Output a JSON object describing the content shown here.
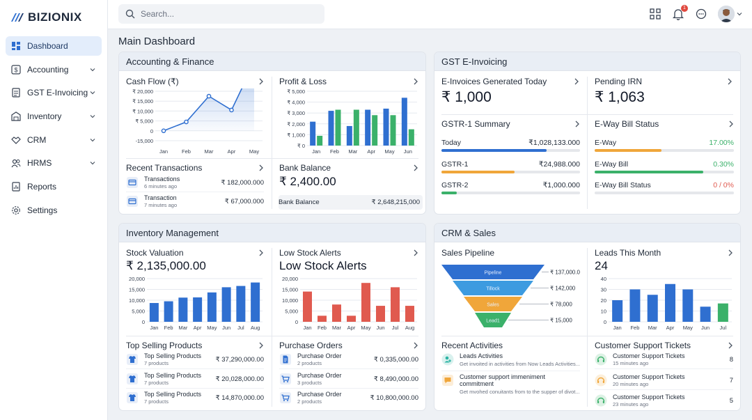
{
  "brand": {
    "name": "BIZIONIX"
  },
  "search": {
    "placeholder": "Search..."
  },
  "topbar": {
    "notification_count": "1",
    "icons": [
      "apps-grid-icon",
      "bell-icon",
      "chat-icon",
      "avatar"
    ]
  },
  "sidebar": {
    "items": [
      {
        "label": "Dashboard",
        "icon": "dashboard-icon",
        "active": true,
        "expandable": false
      },
      {
        "label": "Accounting",
        "icon": "dollar-icon",
        "active": false,
        "expandable": true
      },
      {
        "label": "GST E-Invoicing",
        "icon": "invoice-icon",
        "active": false,
        "expandable": true
      },
      {
        "label": "Inventory",
        "icon": "warehouse-icon",
        "active": false,
        "expandable": true
      },
      {
        "label": "CRM",
        "icon": "handshake-icon",
        "active": false,
        "expandable": true
      },
      {
        "label": "HRMS",
        "icon": "users-icon",
        "active": false,
        "expandable": true
      },
      {
        "label": "Reports",
        "icon": "report-icon",
        "active": false,
        "expandable": false
      },
      {
        "label": "Settings",
        "icon": "gear-icon",
        "active": false,
        "expandable": false
      }
    ]
  },
  "page": {
    "title": "Main Dashboard"
  },
  "colors": {
    "accent_blue": "#2f6fd0",
    "green": "#3bb16a",
    "orange": "#f0a63a",
    "red": "#e05a4f",
    "teal": "#2bb3a3",
    "sidebar_active": "#e3edfb"
  },
  "accounting": {
    "title": "Accounting & Finance",
    "cash_flow": {
      "title": "Cash Flow (₹)",
      "chart_data": {
        "type": "area",
        "categories": [
          "Jan",
          "Feb",
          "Mar",
          "Apr",
          "May"
        ],
        "values": [
          0,
          4500,
          17500,
          10500,
          34500
        ],
        "yticks": [
          "₹ 20,000",
          "₹ 15,000",
          "₹ 10,000",
          "₹ 5,000",
          "0",
          "-15,000"
        ],
        "ylim": [
          -15000,
          20000
        ]
      }
    },
    "profit_loss": {
      "title": "Profit & Loss",
      "chart_data": {
        "type": "bar",
        "categories": [
          "Jan",
          "Feb",
          "Mar",
          "Apr",
          "May",
          "Jun"
        ],
        "series": [
          {
            "values": [
              2200,
              3200,
              1800,
              3300,
              3400,
              4400
            ],
            "color": "#2f6fd0"
          },
          {
            "values": [
              900,
              3300,
              3300,
              2800,
              2800,
              1500
            ],
            "color": "#3bb16a"
          }
        ],
        "yticks": [
          "₹ 5,000",
          "₹ 4,000",
          "₹ 3,000",
          "₹ 2,000",
          "₹ 1,000",
          "₹ 0"
        ],
        "ylim": [
          0,
          5000
        ]
      }
    },
    "recent_transactions": {
      "title": "Recent Transactions",
      "items": [
        {
          "title": "Transactions",
          "sub": "6 minutes ago",
          "amount": "₹ 182,000.000"
        },
        {
          "title": "Transaction",
          "sub": "7 minutes ago",
          "amount": "₹ 67,000.000"
        }
      ]
    },
    "bank_balance": {
      "title": "Bank Balance",
      "value": "₹ 2,400.00",
      "row_label": "Bank Balance",
      "row_value": "₹ 2,648,215,000"
    }
  },
  "gst": {
    "title": "GST E-Invoicing",
    "einvoices": {
      "title": "E-Invoices Generated Today",
      "value": "₹ 1,000"
    },
    "pending_irn": {
      "title": "Pending IRN",
      "value": "₹ 1,063"
    },
    "gstr1": {
      "title": "GSTR-1 Summary",
      "rows": [
        {
          "label": "Today",
          "value": "₹1,028,133.000",
          "fill": 0.76,
          "color": "#2f6fd0"
        },
        {
          "label": "GSTR-1",
          "value": "₹24,988.000",
          "fill": 0.53,
          "color": "#f0a63a"
        },
        {
          "label": "GSTR-2",
          "value": "₹1,000.000",
          "fill": 0.11,
          "color": "#3bb16a"
        }
      ]
    },
    "eway": {
      "title": "E-Way Bill Status",
      "rows": [
        {
          "label": "E-Way",
          "value": "17.00%",
          "fill": 0.48,
          "color": "#f0a63a",
          "value_color": "#3bb16a"
        },
        {
          "label": "E-Way Bill",
          "value": "0.30%",
          "fill": 0.78,
          "color": "#3bb16a",
          "value_color": "#3bb16a"
        },
        {
          "label": "E-Way Bill Status",
          "value": "0 / 0%",
          "fill": 0,
          "color": "#3bb16a",
          "value_color": "#e05a4f"
        }
      ]
    }
  },
  "inventory": {
    "title": "Inventory Management",
    "stock_valuation": {
      "title": "Stock Valuation",
      "value": "₹ 2,135,000.00",
      "chart_data": {
        "type": "bar",
        "categories": [
          "Jan",
          "Feb",
          "Mar",
          "Apr",
          "May",
          "Jun",
          "Jul",
          "Aug"
        ],
        "values": [
          8700,
          9500,
          11200,
          11300,
          13600,
          16000,
          16600,
          18200
        ],
        "yticks": [
          "20,000",
          "15,000",
          "10,000",
          "5,000",
          "0"
        ],
        "ylim": [
          0,
          20000
        ],
        "color": "#2f6fd0"
      }
    },
    "low_stock": {
      "title": "Low Stock Alerts",
      "heading": "Low Stock Alerts",
      "chart_data": {
        "type": "bar",
        "categories": [
          "Jan",
          "Feb",
          "Mar",
          "Apr",
          "May",
          "Jun",
          "Jul",
          "Aug"
        ],
        "values": [
          14000,
          2800,
          8000,
          2800,
          18000,
          7400,
          16000,
          7400
        ],
        "yticks": [
          "20,000",
          "15,000",
          "10,000",
          "5,000",
          "0"
        ],
        "ylim": [
          0,
          20000
        ],
        "color": "#e05a4f"
      }
    },
    "top_selling": {
      "title": "Top Selling Products",
      "items": [
        {
          "title": "Top Selling Products",
          "sub": "7 products",
          "amount": "₹ 37,290,000.00"
        },
        {
          "title": "Top Selling Products",
          "sub": "7 products",
          "amount": "₹ 20,028,000.00"
        },
        {
          "title": "Top Selling Products",
          "sub": "7 products",
          "amount": "₹ 14,870,000.00"
        }
      ]
    },
    "purchase_orders": {
      "title": "Purchase Orders",
      "items": [
        {
          "title": "Purchase Order",
          "sub": "2 products",
          "amount": "₹ 0,335,000.00",
          "icon": "document-icon"
        },
        {
          "title": "Purchase Order",
          "sub": "3 products",
          "amount": "₹ 8,490,000.00",
          "icon": "cart-icon"
        },
        {
          "title": "Purchase Order",
          "sub": "2 products",
          "amount": "₹ 10,800,000.00",
          "icon": "cart-icon"
        }
      ]
    }
  },
  "crm": {
    "title": "CRM & Sales",
    "pipeline": {
      "title": "Sales Pipeline",
      "chart_data": {
        "type": "funnel",
        "stages": [
          {
            "label": "Pipeline",
            "value": "₹ 137,000.00",
            "color": "#2f6fd0"
          },
          {
            "label": "Tillock",
            "value": "₹ 142,000",
            "color": "#3d9be0"
          },
          {
            "label": "Sales",
            "value": "₹ 78,000",
            "color": "#f0a63a"
          },
          {
            "label": "Lead1",
            "value": "₹ 15,000",
            "color": "#3bb16a"
          }
        ]
      }
    },
    "leads": {
      "title": "Leads This Month",
      "value": "24",
      "chart_data": {
        "type": "bar",
        "categories": [
          "Jan",
          "Feb",
          "Mar",
          "Apr",
          "May",
          "Jun",
          "Jul"
        ],
        "values": [
          20,
          30,
          25,
          35,
          30,
          14,
          17
        ],
        "colors": [
          "#2f6fd0",
          "#2f6fd0",
          "#2f6fd0",
          "#2f6fd0",
          "#2f6fd0",
          "#2f6fd0",
          "#3bb16a"
        ],
        "yticks": [
          "40",
          "30",
          "20",
          "10",
          "0"
        ],
        "ylim": [
          0,
          40
        ]
      }
    },
    "recent_activities": {
      "title": "Recent Activities",
      "items": [
        {
          "title": "Leads Activities",
          "sub": "Get invoited in activities from Now Leads Activities...",
          "icon_color": "#2bb3a3"
        },
        {
          "title": "Customer support immeniment commitment",
          "sub": "Get mvohed conuitants from to the supper of divot...",
          "icon_color": "#f0a63a"
        }
      ]
    },
    "support": {
      "title": "Customer Support Tickets",
      "items": [
        {
          "title": "Customer Support Tickets",
          "sub": "15 minutes ago",
          "count": "8",
          "icon_color": "#3bb16a"
        },
        {
          "title": "Customer Support Tickets",
          "sub": "20 minutes ago",
          "count": "7",
          "icon_color": "#f0a63a"
        },
        {
          "title": "Customer Support Tickets",
          "sub": "23 minutes ago",
          "count": "5",
          "icon_color": "#3bb16a"
        }
      ]
    }
  }
}
